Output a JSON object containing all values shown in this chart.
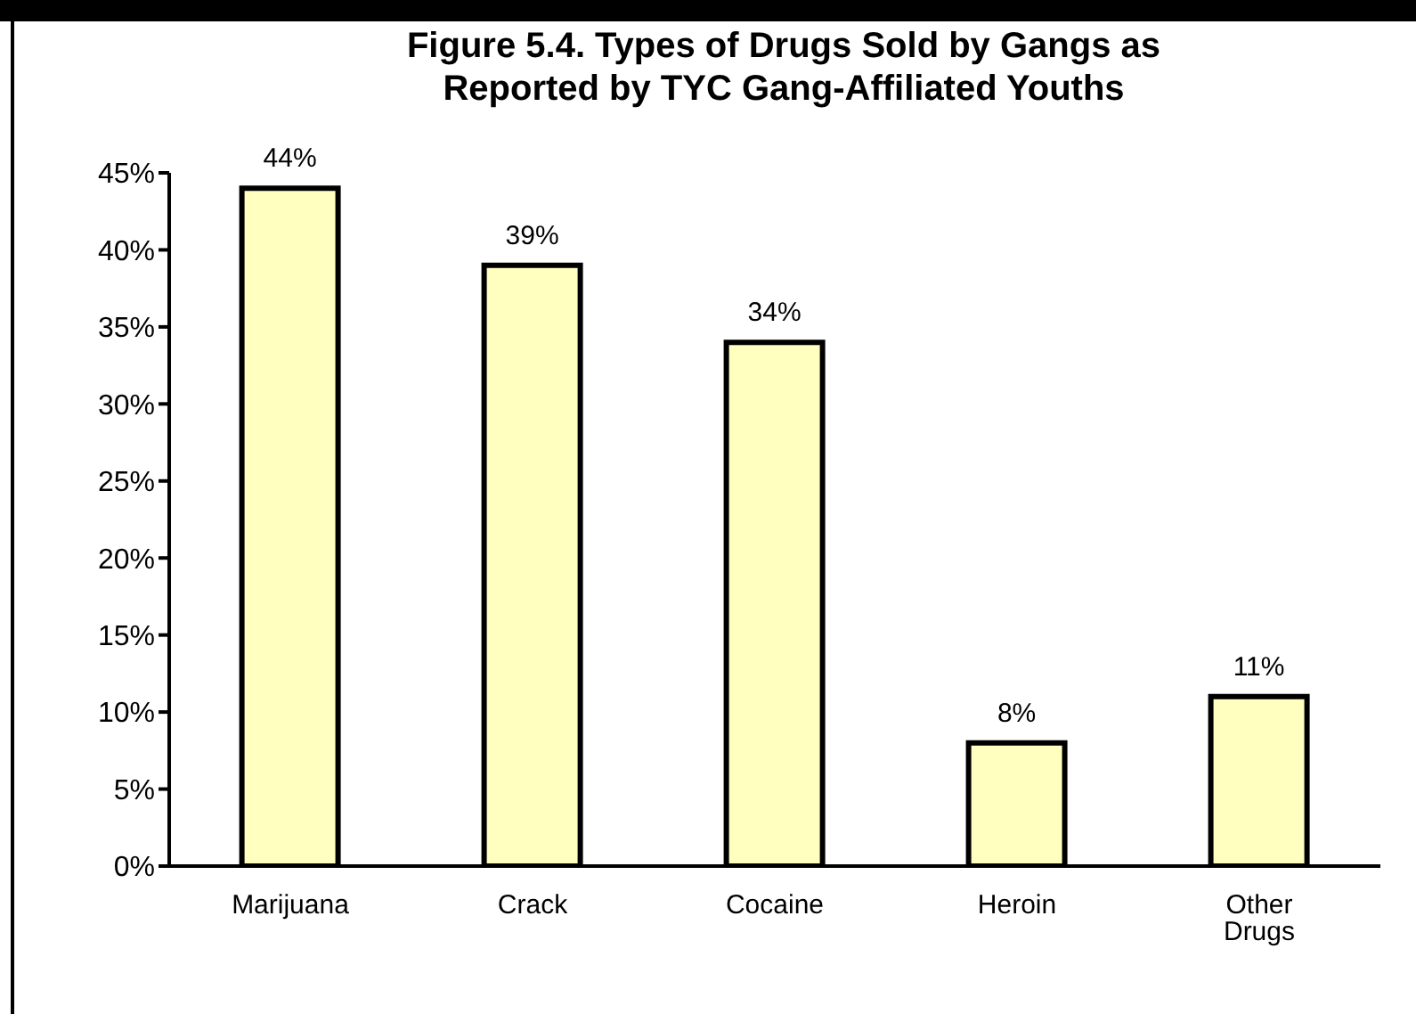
{
  "chart_data": {
    "type": "bar",
    "title": "Figure 5.4. Types of Drugs Sold by Gangs as Reported by TYC Gang-Affiliated Youths",
    "categories": [
      "Marijuana",
      "Crack",
      "Cocaine",
      "Heroin",
      "Other Drugs"
    ],
    "values": [
      44,
      39,
      34,
      8,
      11
    ],
    "value_labels": [
      "44%",
      "39%",
      "34%",
      "8%",
      "11%"
    ],
    "color": "#ffffc0",
    "ylim": [
      0,
      45
    ],
    "yticks": [
      {
        "value": 0,
        "label": "0%"
      },
      {
        "value": 5,
        "label": "5%"
      },
      {
        "value": 10,
        "label": "10%"
      },
      {
        "value": 15,
        "label": "15%"
      },
      {
        "value": 20,
        "label": "20%"
      },
      {
        "value": 25,
        "label": "25%"
      },
      {
        "value": 30,
        "label": "30%"
      },
      {
        "value": 35,
        "label": "35%"
      },
      {
        "value": 40,
        "label": "40%"
      },
      {
        "value": 45,
        "label": "45%"
      }
    ],
    "grid": false
  }
}
